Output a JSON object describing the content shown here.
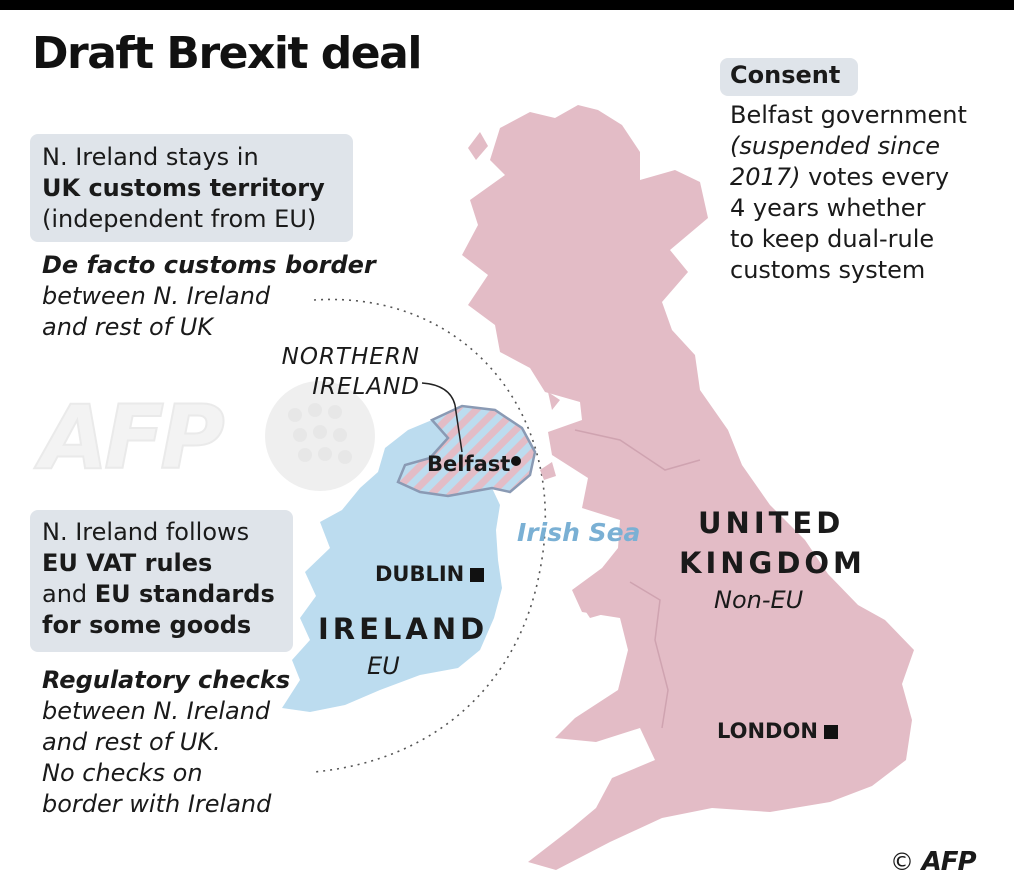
{
  "title": "Draft Brexit deal",
  "panel_customs": {
    "line1": "N. Ireland stays in",
    "line2": "UK customs territory",
    "line3": "(independent from EU)"
  },
  "customs_border": {
    "heading": "De facto customs border",
    "line1": "between N. Ireland",
    "line2": "and rest of UK"
  },
  "panel_vat": {
    "line1": "N. Ireland follows",
    "line2": "EU VAT rules",
    "line3_normal": "and ",
    "line3_bold": "EU standards",
    "line4": "for some goods"
  },
  "regulatory": {
    "heading": "Regulatory checks",
    "line1": "between N. Ireland",
    "line2": "and rest of UK.",
    "line3": "No checks on",
    "line4": "border with Ireland"
  },
  "consent": {
    "heading": "Consent",
    "line1": "Belfast government",
    "line2": "(suspended since",
    "line3_italic": "2017)",
    "line3_rest": " votes every",
    "line4": "4 years whether",
    "line5": "to keep dual-rule",
    "line6": "customs system"
  },
  "labels": {
    "northern_ireland_1": "NORTHERN",
    "northern_ireland_2": "IRELAND",
    "belfast": "Belfast",
    "dublin": "DUBLIN",
    "ireland": "IRELAND",
    "ireland_status": "EU",
    "irish_sea": "Irish Sea",
    "uk_1": "UNITED",
    "uk_2": "KINGDOM",
    "uk_status": "Non-EU",
    "london": "LONDON"
  },
  "credit": {
    "copyright": "©",
    "agency": "AFP",
    "watermark": "AFP"
  },
  "colors": {
    "uk": "#e3bcc6",
    "ireland": "#bcdcef",
    "panel": "#dfe4ea",
    "sea_label": "#7ab0d4",
    "ni_border": "#8a9ab4"
  }
}
